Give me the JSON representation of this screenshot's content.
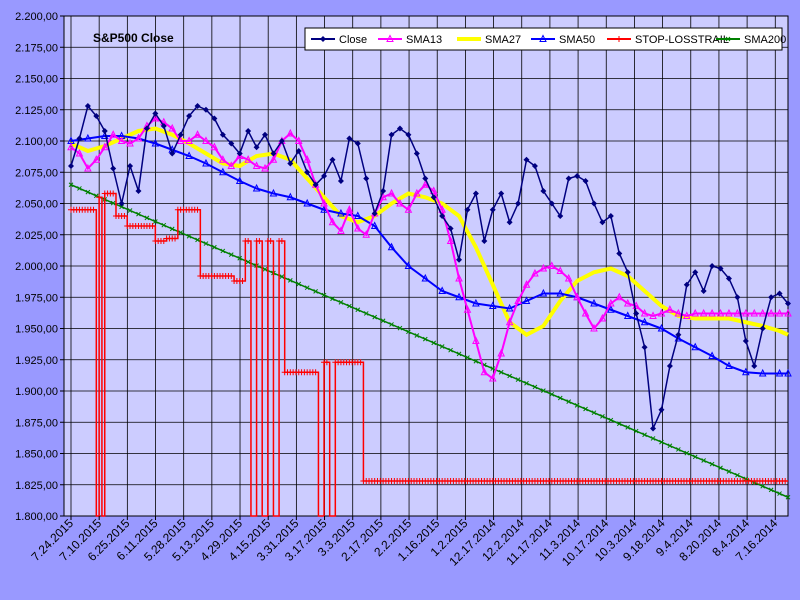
{
  "chart_data": {
    "type": "line",
    "title": "S&P500 Close",
    "xlabel": "",
    "ylabel": "",
    "ylim": [
      1800,
      2200
    ],
    "ytick_step": 25,
    "y_tick_labels": [
      "1.800,00",
      "1.825,00",
      "1.850,00",
      "1.875,00",
      "1.900,00",
      "1.925,00",
      "1.950,00",
      "1.975,00",
      "2.000,00",
      "2.025,00",
      "2.050,00",
      "2.075,00",
      "2.100,00",
      "2.125,00",
      "2.150,00",
      "2.175,00",
      "2.200,00"
    ],
    "x_tick_labels": [
      "7.24.2015",
      "7.10.2015",
      "6.25.2015",
      "6.11.2015",
      "5.28.2015",
      "5.13.2015",
      "4.29.2015",
      "4.15.2015",
      "3.31.2015",
      "3.17.2015",
      "3.3.2015",
      "2.17.2015",
      "2.2.2015",
      "1.16.2015",
      "1.2.2015",
      "12.17.2014",
      "12.2.2014",
      "11.17.2014",
      "11.3.2014",
      "10.17.2014",
      "10.3.2014",
      "9.18.2014",
      "9.4.2014",
      "8.20.2014",
      "8.4.2014",
      "7.16.2014"
    ],
    "grid": true,
    "legend_position": "top-right",
    "x_note": "trading days, most recent first (index 0 = 7.24.2015)",
    "series": [
      {
        "name": "Close",
        "color": "#000080",
        "marker": "diamond",
        "x": [
          0,
          3,
          6,
          9,
          12,
          15,
          18,
          21,
          24,
          27,
          30,
          33,
          36,
          39,
          42,
          45,
          48,
          51,
          54,
          57,
          60,
          63,
          66,
          69,
          72,
          75,
          78,
          81,
          84,
          87,
          90,
          93,
          96,
          99,
          102,
          105,
          108,
          111,
          114,
          117,
          120,
          123,
          126,
          129,
          132,
          135,
          138,
          141,
          144,
          147,
          150,
          153,
          156,
          159,
          162,
          165,
          168,
          171,
          174,
          177,
          180,
          183,
          186,
          189,
          192,
          195,
          198,
          201,
          204,
          207,
          210,
          213,
          216,
          219,
          222,
          225,
          228,
          231,
          234,
          237,
          240,
          243,
          246,
          249,
          252,
          255
        ],
        "values": [
          2080,
          2102,
          2128,
          2120,
          2108,
          2078,
          2050,
          2080,
          2060,
          2110,
          2122,
          2112,
          2090,
          2105,
          2120,
          2128,
          2125,
          2118,
          2105,
          2098,
          2090,
          2108,
          2095,
          2105,
          2090,
          2100,
          2082,
          2092,
          2075,
          2065,
          2072,
          2085,
          2068,
          2102,
          2098,
          2070,
          2042,
          2060,
          2105,
          2110,
          2105,
          2090,
          2070,
          2055,
          2040,
          2030,
          2005,
          2045,
          2058,
          2020,
          2045,
          2058,
          2035,
          2050,
          2085,
          2080,
          2060,
          2050,
          2040,
          2070,
          2072,
          2068,
          2050,
          2035,
          2040,
          2010,
          1995,
          1962,
          1935,
          1870,
          1885,
          1920,
          1945,
          1985,
          1995,
          1980,
          2000,
          1998,
          1990,
          1975,
          1940,
          1920,
          1950,
          1975,
          1978,
          1970
        ]
      },
      {
        "name": "SMA13",
        "color": "#FF00FF",
        "marker": "triangle",
        "x": [
          0,
          3,
          6,
          9,
          12,
          15,
          18,
          21,
          24,
          27,
          30,
          33,
          36,
          39,
          42,
          45,
          48,
          51,
          54,
          57,
          60,
          63,
          66,
          69,
          72,
          75,
          78,
          81,
          84,
          87,
          90,
          93,
          96,
          99,
          102,
          105,
          108,
          111,
          114,
          117,
          120,
          123,
          126,
          129,
          132,
          135,
          138,
          141,
          144,
          147,
          150,
          153,
          156,
          159,
          162,
          165,
          168,
          171,
          174,
          177,
          180,
          183,
          186,
          189,
          192,
          195,
          198,
          201,
          204,
          207,
          210,
          213,
          216,
          219,
          222,
          225,
          228,
          231,
          234,
          237,
          240,
          243,
          246,
          249,
          252,
          255
        ],
        "values": [
          2095,
          2090,
          2078,
          2085,
          2095,
          2105,
          2100,
          2098,
          2102,
          2112,
          2118,
          2115,
          2110,
          2100,
          2100,
          2105,
          2100,
          2095,
          2085,
          2080,
          2088,
          2085,
          2080,
          2078,
          2085,
          2100,
          2106,
          2100,
          2085,
          2065,
          2050,
          2035,
          2028,
          2045,
          2030,
          2025,
          2042,
          2055,
          2058,
          2050,
          2045,
          2058,
          2065,
          2060,
          2045,
          2020,
          1990,
          1965,
          1940,
          1915,
          1910,
          1930,
          1955,
          1972,
          1985,
          1994,
          1998,
          2000,
          1996,
          1990,
          1975,
          1962,
          1950,
          1958,
          1970,
          1975,
          1970,
          1968,
          1962,
          1960,
          1962,
          1965,
          1962,
          1960,
          1962,
          1962,
          1962,
          1962,
          1962,
          1962,
          1962,
          1962,
          1962,
          1962,
          1962,
          1962
        ]
      },
      {
        "name": "SMA27",
        "color": "#FFFF00",
        "marker": "none",
        "x": [
          0,
          6,
          12,
          18,
          24,
          30,
          36,
          42,
          48,
          54,
          60,
          66,
          72,
          78,
          84,
          90,
          96,
          102,
          108,
          114,
          120,
          126,
          132,
          138,
          144,
          150,
          156,
          162,
          168,
          174,
          180,
          186,
          192,
          198,
          204,
          210,
          216,
          222,
          228,
          234,
          240,
          246,
          252,
          255
        ],
        "values": [
          2098,
          2092,
          2096,
          2102,
          2108,
          2110,
          2105,
          2098,
          2090,
          2082,
          2080,
          2088,
          2090,
          2085,
          2070,
          2055,
          2040,
          2035,
          2040,
          2050,
          2058,
          2055,
          2050,
          2040,
          2015,
          1985,
          1955,
          1945,
          1952,
          1972,
          1988,
          1995,
          1998,
          1992,
          1980,
          1968,
          1960,
          1958,
          1958,
          1958,
          1955,
          1952,
          1948,
          1945
        ]
      },
      {
        "name": "SMA50",
        "color": "#0000FF",
        "marker": "triangle",
        "x": [
          0,
          6,
          12,
          18,
          24,
          30,
          36,
          42,
          48,
          54,
          60,
          66,
          72,
          78,
          84,
          90,
          96,
          102,
          108,
          114,
          120,
          126,
          132,
          138,
          144,
          150,
          156,
          162,
          168,
          174,
          180,
          186,
          192,
          198,
          204,
          210,
          216,
          222,
          228,
          234,
          240,
          246,
          252,
          255
        ],
        "values": [
          2100,
          2102,
          2104,
          2104,
          2102,
          2098,
          2093,
          2088,
          2082,
          2075,
          2068,
          2062,
          2058,
          2055,
          2050,
          2045,
          2042,
          2040,
          2032,
          2015,
          2000,
          1990,
          1980,
          1975,
          1970,
          1968,
          1966,
          1972,
          1978,
          1978,
          1975,
          1970,
          1965,
          1960,
          1955,
          1950,
          1942,
          1935,
          1928,
          1920,
          1915,
          1914,
          1914,
          1914
        ]
      },
      {
        "name": "STOP-LOSSTRAIL",
        "color": "#FF0000",
        "marker": "plus",
        "x": [
          0,
          8,
          9,
          10,
          11,
          12,
          14,
          16,
          18,
          20,
          22,
          30,
          32,
          34,
          36,
          38,
          40,
          46,
          48,
          50,
          54,
          56,
          58,
          60,
          62,
          64,
          66,
          68,
          70,
          72,
          74,
          76,
          78,
          80,
          82,
          84,
          86,
          88,
          90,
          92,
          94,
          98,
          100,
          102,
          104,
          110,
          112,
          114,
          120,
          126,
          130,
          134,
          138,
          142,
          146,
          150,
          156,
          160,
          164,
          168,
          172,
          176,
          180,
          186,
          192,
          198,
          204,
          210,
          216,
          222,
          228,
          234,
          240,
          246,
          250,
          252,
          255
        ],
        "values": [
          2045,
          2045,
          1800,
          2055,
          1800,
          2058,
          2058,
          2040,
          2040,
          2032,
          2032,
          2020,
          2020,
          2022,
          2022,
          2045,
          2045,
          1992,
          1992,
          1992,
          1992,
          1992,
          1988,
          1988,
          2020,
          1800,
          2020,
          1800,
          2020,
          1800,
          2020,
          1915,
          1915,
          1915,
          1915,
          1915,
          1915,
          1800,
          1923,
          1800,
          1923,
          1923,
          1923,
          1923,
          1828,
          1828,
          1828,
          1828,
          1828,
          1828,
          1828,
          1828,
          1828,
          1828,
          1828,
          1828,
          1828,
          1828,
          1828,
          1828,
          1828,
          1828,
          1828,
          1828,
          1828,
          1828,
          1828,
          1828,
          1828,
          1828,
          1828,
          1828,
          1828,
          1828,
          1828,
          1828,
          1828
        ]
      },
      {
        "name": "SMA200",
        "color": "#008000",
        "marker": "x",
        "x": [
          0,
          255
        ],
        "values": [
          2065,
          1815
        ]
      }
    ]
  }
}
